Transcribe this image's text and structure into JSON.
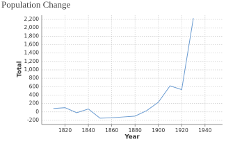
{
  "chart_data": {
    "type": "line",
    "title": "Population Change",
    "x_label": "Year",
    "y_label": "Total",
    "x": [
      1810,
      1820,
      1830,
      1840,
      1850,
      1860,
      1870,
      1880,
      1890,
      1900,
      1910,
      1920,
      1930
    ],
    "series": [
      {
        "name": "Total",
        "color": "#6a9bd1",
        "values": [
          80,
          100,
          -20,
          70,
          -150,
          -140,
          -120,
          -100,
          30,
          230,
          620,
          530,
          2230
        ]
      }
    ],
    "xlim": [
      1800,
      1955
    ],
    "xticks": [
      1820,
      1840,
      1860,
      1880,
      1900,
      1920,
      1940
    ],
    "ylim": [
      -300,
      2300
    ],
    "yticks": [
      -200,
      0,
      200,
      400,
      600,
      800,
      {
        "value": 1000,
        "label": "1,000"
      },
      {
        "value": 1200,
        "label": "1,200"
      },
      {
        "value": 1400,
        "label": "1,400"
      },
      {
        "value": 1600,
        "label": "1,600"
      },
      {
        "value": 1800,
        "label": "1,800"
      },
      {
        "value": 2000,
        "label": "2,000"
      },
      {
        "value": 2200,
        "label": "2,200"
      }
    ],
    "grid": true
  }
}
